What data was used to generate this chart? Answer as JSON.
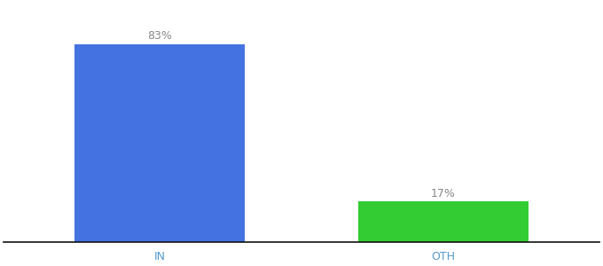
{
  "categories": [
    "IN",
    "OTH"
  ],
  "values": [
    83,
    17
  ],
  "bar_colors": [
    "#4472e0",
    "#33cc33"
  ],
  "label_texts": [
    "83%",
    "17%"
  ],
  "background_color": "#ffffff",
  "ylim": [
    0,
    100
  ],
  "bar_width": 0.6,
  "label_fontsize": 9,
  "tick_fontsize": 9,
  "label_color": "#888888",
  "tick_color": "#5599cc",
  "spine_color": "#111111"
}
